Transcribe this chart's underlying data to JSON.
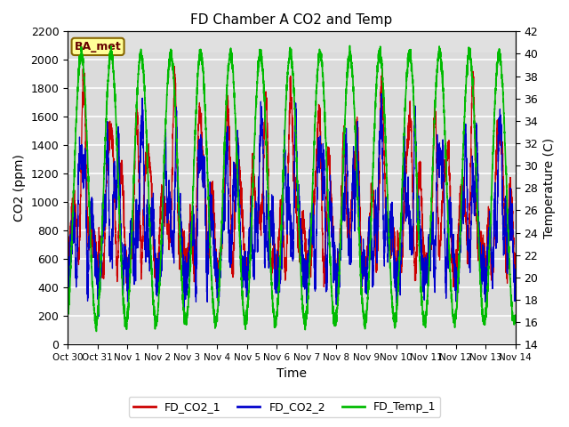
{
  "title": "FD Chamber A CO2 and Temp",
  "xlabel": "Time",
  "ylabel_left": "CO2 (ppm)",
  "ylabel_right": "Temperature (C)",
  "ylim_left": [
    0,
    2200
  ],
  "ylim_right": [
    14,
    42
  ],
  "yticks_left": [
    0,
    200,
    400,
    600,
    800,
    1000,
    1200,
    1400,
    1600,
    1800,
    2000,
    2200
  ],
  "yticks_right": [
    14,
    16,
    18,
    20,
    22,
    24,
    26,
    28,
    30,
    32,
    34,
    36,
    38,
    40,
    42
  ],
  "xtick_labels": [
    "Oct 30",
    "Oct 31",
    "Nov 1",
    "Nov 2",
    "Nov 3",
    "Nov 4",
    "Nov 5",
    "Nov 6",
    "Nov 7",
    "Nov 8",
    "Nov 9",
    "Nov 10",
    "Nov 11",
    "Nov 12",
    "Nov 13",
    "Nov 14"
  ],
  "color_co2_1": "#cc0000",
  "color_co2_2": "#0000cc",
  "color_temp": "#00bb00",
  "legend_labels": [
    "FD_CO2_1",
    "FD_CO2_2",
    "FD_Temp_1"
  ],
  "badge_text": "BA_met",
  "badge_bg": "#ffff99",
  "badge_border": "#886600",
  "background_color": "#ffffff",
  "plot_bg_color": "#e0e0e0",
  "grid_color": "#ffffff",
  "num_days": 15,
  "temp_min_c": 16,
  "temp_max_c": 40,
  "figsize": [
    6.4,
    4.8
  ],
  "dpi": 100
}
